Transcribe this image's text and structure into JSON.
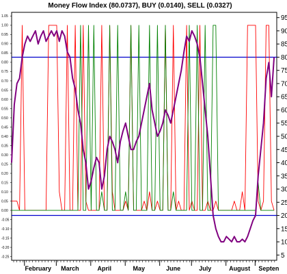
{
  "chart_data": {
    "type": "line",
    "title": "Money Flow Index (80.0737), BUY (0.0140), SELL (0.0327)",
    "xlabel": "",
    "ylabel": "",
    "x_categories": [
      "February",
      "March",
      "April",
      "May",
      "June",
      "July",
      "August",
      "Septen"
    ],
    "x_domain": [
      0,
      100
    ],
    "x_month_positions": [
      10,
      22,
      35,
      48,
      61,
      73,
      86,
      97
    ],
    "right_axis": {
      "ylim": [
        3,
        97
      ],
      "ticks": [
        5,
        10,
        15,
        20,
        25,
        30,
        35,
        40,
        45,
        50,
        55,
        60,
        65,
        70,
        75,
        80,
        85,
        90,
        95
      ]
    },
    "left_axis": {
      "ylim": [
        -0.27,
        1.07
      ],
      "tick_labels": [
        "1.05",
        "1.00",
        "0.95",
        "0.90",
        "0.85",
        "0.80",
        "0.75",
        "0.70",
        "0.65",
        "0.60",
        "0.55",
        "0.50",
        "0.45",
        "0.40",
        "0.35",
        "0.30",
        "0.25",
        "0.20",
        "0.15",
        "0.10",
        "0.05",
        "0.00",
        "-0.05",
        "-0.10",
        "-0.15",
        "-0.20",
        "-0.25"
      ]
    },
    "reference_lines": {
      "values": [
        80,
        20
      ],
      "color": "#0000cc"
    },
    "grid": false,
    "series": [
      {
        "role": "mfi",
        "color": "#800080",
        "x": [
          0,
          1,
          2,
          3,
          4,
          5,
          6,
          7,
          8,
          9,
          10,
          11,
          12,
          13,
          14,
          15,
          16,
          17,
          18,
          19,
          20,
          21,
          22,
          23,
          24,
          25,
          26,
          27,
          28,
          29,
          30,
          31,
          32,
          33,
          34,
          35,
          36,
          37,
          38,
          39,
          40,
          41,
          42,
          43,
          44,
          45,
          46,
          47,
          48,
          49,
          50,
          51,
          52,
          53,
          54,
          55,
          56,
          57,
          58,
          59,
          60,
          61,
          62,
          63,
          64,
          65,
          66,
          67,
          68,
          69,
          70,
          71,
          72,
          73,
          74,
          75,
          76,
          77,
          78,
          79,
          80,
          81,
          82,
          83,
          84,
          85,
          86,
          87,
          88,
          89,
          90,
          91,
          92,
          93,
          94,
          95,
          96,
          97,
          98,
          99
        ],
        "values": [
          40,
          62,
          70,
          72,
          80,
          85,
          88,
          86,
          88,
          90,
          85,
          88,
          90,
          86,
          88,
          90,
          88,
          90,
          86,
          90,
          88,
          82,
          80,
          72,
          68,
          60,
          55,
          45,
          40,
          30,
          33,
          38,
          42,
          40,
          30,
          35,
          45,
          50,
          48,
          45,
          40,
          48,
          52,
          55,
          50,
          45,
          45,
          48,
          50,
          55,
          60,
          65,
          70,
          60,
          55,
          50,
          52,
          55,
          60,
          58,
          55,
          60,
          65,
          70,
          75,
          82,
          88,
          86,
          90,
          88,
          85,
          80,
          70,
          60,
          50,
          35,
          20,
          15,
          12,
          10,
          10,
          12,
          11,
          10,
          12,
          10,
          10,
          11,
          10,
          12,
          15,
          18,
          20,
          35,
          45,
          55,
          72,
          78,
          65,
          80
        ]
      },
      {
        "role": "buy",
        "color": "#ff0000",
        "x": [
          0,
          2,
          3,
          4,
          5,
          6,
          7,
          8,
          9,
          10,
          11,
          12,
          13,
          14,
          15,
          16,
          17,
          18,
          19,
          20,
          21,
          22,
          23,
          24,
          25,
          26,
          27,
          28,
          29,
          30,
          31,
          32,
          33,
          34,
          35,
          36,
          37,
          38,
          39,
          40,
          41,
          42,
          43,
          44,
          45,
          46,
          47,
          48,
          49,
          50,
          51,
          52,
          53,
          54,
          55,
          56,
          57,
          58,
          59,
          60,
          61,
          62,
          63,
          64,
          65,
          66,
          67,
          68,
          69,
          70,
          71,
          72,
          73,
          74,
          75,
          76,
          77,
          78,
          79,
          80,
          81,
          82,
          83,
          84,
          85,
          86,
          87,
          88,
          89,
          90,
          91,
          92,
          93,
          94,
          95,
          96,
          97,
          98,
          99
        ],
        "values": [
          0.05,
          0.05,
          0.0,
          1.0,
          0.0,
          0.0,
          0.0,
          0.0,
          0.0,
          0.0,
          0.0,
          0.0,
          0.0,
          1.0,
          1.0,
          1.0,
          1.0,
          0.1,
          0.0,
          0.0,
          1.0,
          0.0,
          0.0,
          1.0,
          0.0,
          0.0,
          1.0,
          0.05,
          0.0,
          0.0,
          0.0,
          0.0,
          0.0,
          1.0,
          0.0,
          0.0,
          1.0,
          0.1,
          0.0,
          0.0,
          0.0,
          0.0,
          0.05,
          0.0,
          1.0,
          0.0,
          0.0,
          0.0,
          0.0,
          0.05,
          0.0,
          0.1,
          0.0,
          0.0,
          0.05,
          0.0,
          0.0,
          1.0,
          0.0,
          0.0,
          1.0,
          0.0,
          0.05,
          0.0,
          0.0,
          1.0,
          0.0,
          0.05,
          0.0,
          0.0,
          1.0,
          0.0,
          0.0,
          0.05,
          0.0,
          0.0,
          0.05,
          0.0,
          0.0,
          0.0,
          0.0,
          0.0,
          0.0,
          0.05,
          0.0,
          0.0,
          0.1,
          0.0,
          1.0,
          1.0,
          1.0,
          1.0,
          0.05,
          0.0,
          0.05,
          1.0,
          1.0,
          0.05,
          0.0
        ]
      },
      {
        "role": "sell",
        "color": "#008000",
        "x": [
          0,
          1,
          2,
          3,
          4,
          5,
          6,
          7,
          8,
          9,
          10,
          11,
          12,
          13,
          14,
          15,
          16,
          17,
          18,
          19,
          20,
          21,
          22,
          23,
          24,
          25,
          26,
          27,
          28,
          29,
          30,
          31,
          32,
          33,
          34,
          35,
          36,
          37,
          38,
          39,
          40,
          41,
          42,
          43,
          44,
          45,
          46,
          47,
          48,
          49,
          50,
          51,
          52,
          53,
          54,
          55,
          56,
          57,
          58,
          59,
          60,
          61,
          62,
          63,
          64,
          65,
          66,
          67,
          68,
          69,
          70,
          71,
          72,
          73,
          74,
          75,
          76,
          77,
          78,
          79,
          80,
          81,
          82,
          83,
          84,
          85,
          86,
          87,
          88,
          89,
          90,
          91,
          92,
          93,
          94,
          95,
          96,
          97,
          98,
          99
        ],
        "values": [
          0.0,
          0.0,
          0.0,
          0.0,
          0.0,
          0.0,
          0.0,
          0.0,
          0.0,
          0.0,
          0.0,
          0.0,
          0.0,
          0.0,
          0.0,
          0.0,
          0.0,
          0.0,
          0.0,
          0.0,
          0.0,
          0.0,
          0.0,
          0.0,
          0.0,
          0.0,
          1.0,
          0.0,
          0.0,
          1.0,
          0.0,
          1.0,
          0.0,
          0.0,
          0.1,
          0.0,
          0.0,
          1.0,
          0.0,
          0.0,
          1.0,
          0.0,
          0.0,
          0.1,
          0.0,
          1.0,
          0.0,
          0.0,
          1.0,
          0.0,
          0.0,
          0.0,
          1.0,
          0.0,
          0.0,
          1.0,
          0.0,
          0.0,
          1.0,
          0.0,
          0.0,
          0.1,
          0.0,
          0.0,
          0.0,
          0.0,
          0.0,
          1.0,
          0.0,
          0.0,
          1.0,
          0.0,
          0.0,
          1.0,
          0.0,
          0.0,
          1.0,
          1.0,
          0.0,
          0.0,
          0.0,
          0.0,
          0.0,
          0.0,
          0.0,
          0.0,
          0.0,
          0.0,
          0.0,
          0.0,
          0.0,
          0.0,
          0.0,
          0.15,
          0.0,
          0.0,
          0.0,
          0.0,
          0.0,
          0.0
        ]
      }
    ]
  }
}
